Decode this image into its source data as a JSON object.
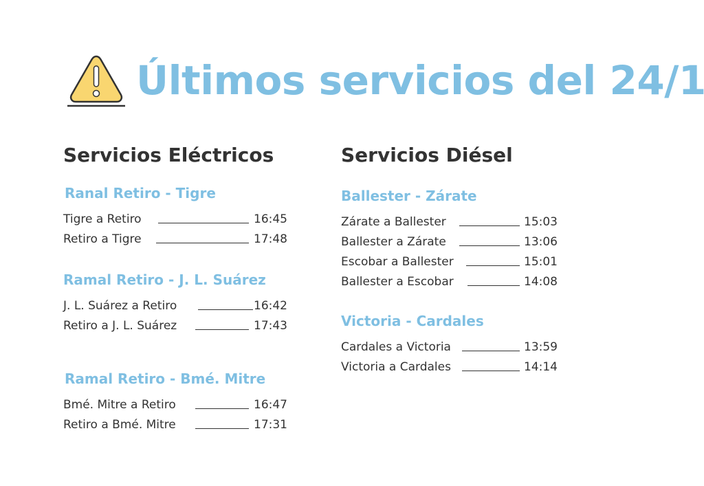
{
  "header": {
    "icon": "warning-icon",
    "title": "Últimos servicios del 24/1",
    "title_color": "#7fbfe2",
    "icon_color": "#f9d670"
  },
  "electric": {
    "heading": "Servicios Eléctricos",
    "groups": [
      {
        "title": "Ranal Retiro - Tigre",
        "trips": [
          {
            "route": "Tigre a Retiro",
            "time": "16:45"
          },
          {
            "route": "Retiro a Tigre",
            "time": "17:48"
          }
        ]
      },
      {
        "title": "Ramal Retiro - J. L. Suárez",
        "trips": [
          {
            "route": "J. L. Suárez a Retiro",
            "time": "16:42"
          },
          {
            "route": "Retiro a J. L. Suárez",
            "time": "17:43"
          }
        ]
      },
      {
        "title": "Ramal Retiro - Bmé. Mitre",
        "trips": [
          {
            "route": "Bmé. Mitre a Retiro",
            "time": "16:47"
          },
          {
            "route": "Retiro a Bmé. Mitre",
            "time": "17:31"
          }
        ]
      }
    ]
  },
  "diesel": {
    "heading": "Servicios Diésel",
    "groups": [
      {
        "title": "Ballester - Zárate",
        "trips": [
          {
            "route": "Zárate a Ballester",
            "time": "15:03"
          },
          {
            "route": "Ballester a Zárate",
            "time": "13:06"
          },
          {
            "route": "Escobar a Ballester",
            "time": "15:01"
          },
          {
            "route": "Ballester a Escobar",
            "time": "14:08"
          }
        ]
      },
      {
        "title": "Victoria - Cardales",
        "trips": [
          {
            "route": "Cardales a Victoria",
            "time": "13:59"
          },
          {
            "route": "Victoria a Cardales",
            "time": "14:14"
          }
        ]
      }
    ]
  }
}
